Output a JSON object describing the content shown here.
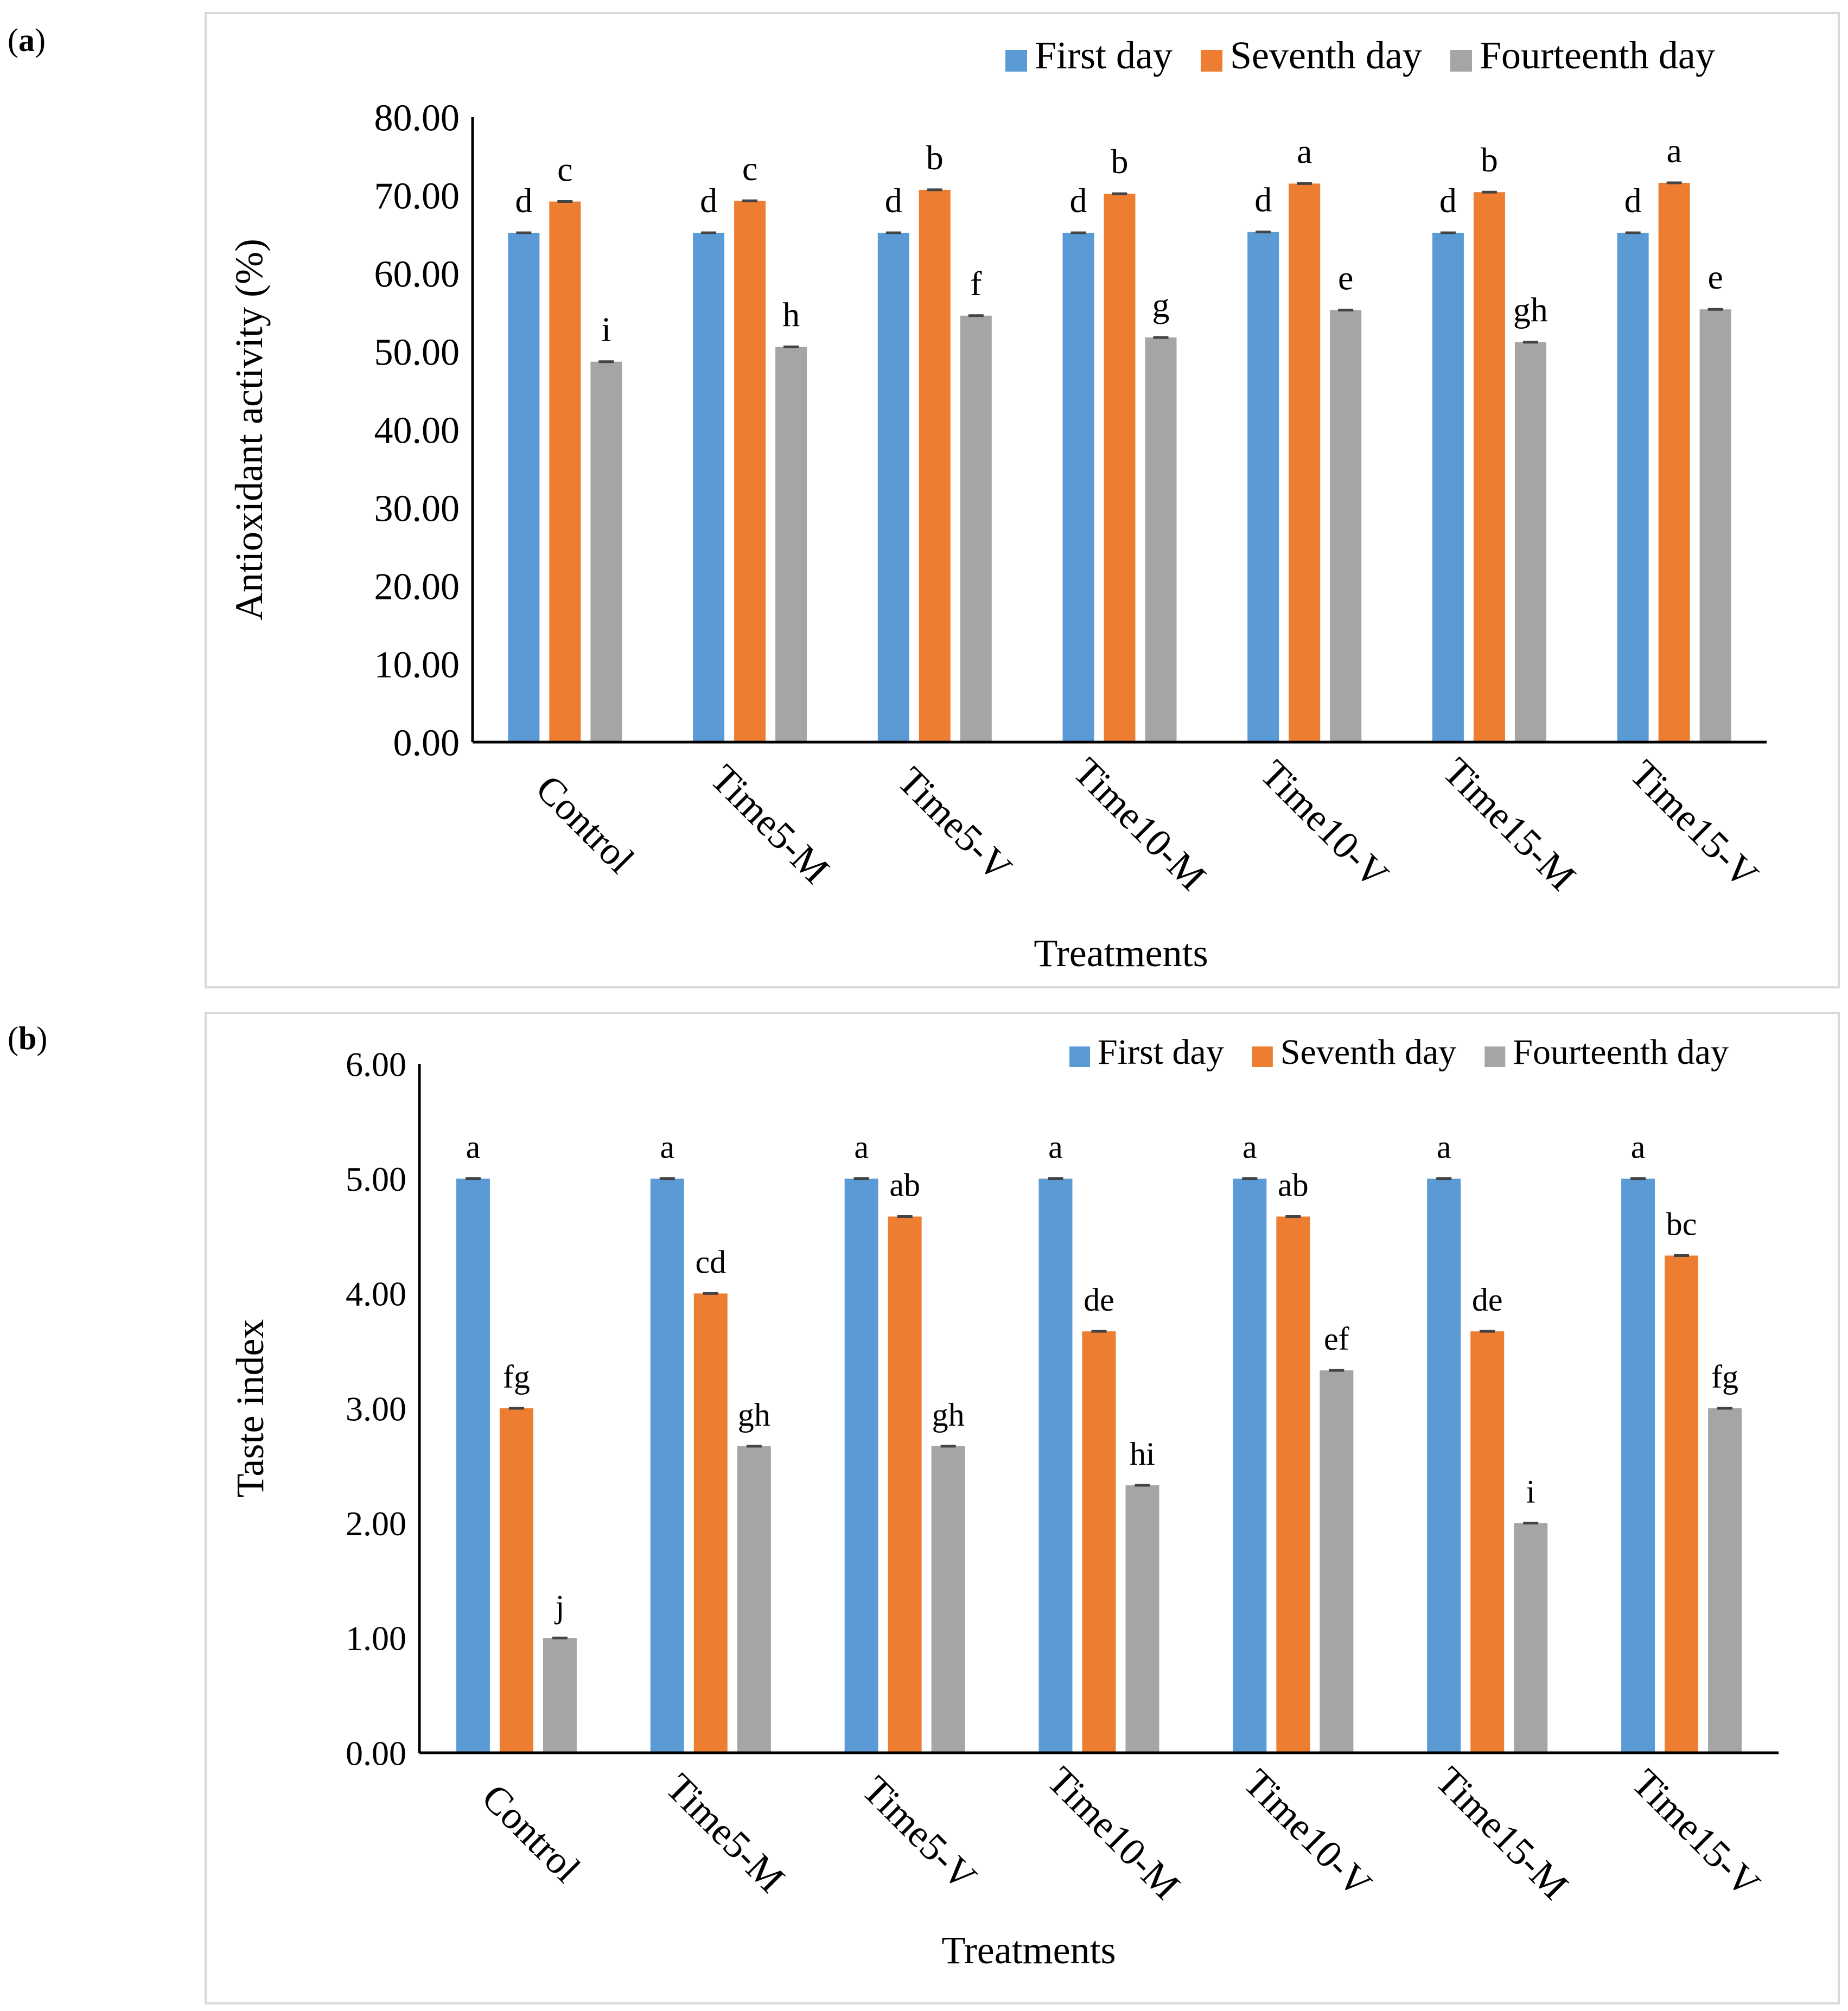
{
  "panels": [
    {
      "label_open": "(",
      "label_letter": "a",
      "label_close": ")"
    },
    {
      "label_open": "(",
      "label_letter": "b",
      "label_close": ")"
    }
  ],
  "chart_data": [
    {
      "type": "bar",
      "categories": [
        "Control",
        "Time5-M",
        "Time5-V",
        "Time10-M",
        "Time10-V",
        "Time15-M",
        "Time15-V"
      ],
      "series": [
        {
          "name": "First day",
          "color": "#5b9bd5",
          "values": [
            65.2,
            65.2,
            65.2,
            65.2,
            65.3,
            65.2,
            65.2
          ],
          "letters": [
            "d",
            "d",
            "d",
            "d",
            "d",
            "d",
            "d"
          ]
        },
        {
          "name": "Seventh day",
          "color": "#ed7d31",
          "values": [
            69.2,
            69.3,
            70.7,
            70.2,
            71.5,
            70.4,
            71.6
          ],
          "letters": [
            "c",
            "c",
            "b",
            "b",
            "a",
            "b",
            "a"
          ]
        },
        {
          "name": "Fourteenth day",
          "color": "#a5a5a5",
          "values": [
            48.7,
            50.6,
            54.6,
            51.8,
            55.3,
            51.2,
            55.4
          ],
          "letters": [
            "i",
            "h",
            "f",
            "g",
            "e",
            "gh",
            "e"
          ]
        }
      ],
      "xlabel": "Treatments",
      "ylabel": "Antioxidant activity (%)",
      "ylim": [
        0,
        80
      ],
      "yticks": [
        "0.00",
        "10.00",
        "20.00",
        "30.00",
        "40.00",
        "50.00",
        "60.00",
        "70.00",
        "80.00"
      ],
      "legend": "top-right",
      "grid": false
    },
    {
      "type": "bar",
      "categories": [
        "Control",
        "Time5-M",
        "Time5-V",
        "Time10-M",
        "Time10-V",
        "Time15-M",
        "Time15-V"
      ],
      "series": [
        {
          "name": "First day",
          "color": "#5b9bd5",
          "values": [
            5.0,
            5.0,
            5.0,
            5.0,
            5.0,
            5.0,
            5.0
          ],
          "letters": [
            "a",
            "a",
            "a",
            "a",
            "a",
            "a",
            "a"
          ]
        },
        {
          "name": "Seventh day",
          "color": "#ed7d31",
          "values": [
            3.0,
            4.0,
            4.67,
            3.67,
            4.67,
            3.67,
            4.33
          ],
          "letters": [
            "fg",
            "cd",
            "ab",
            "de",
            "ab",
            "de",
            "bc"
          ]
        },
        {
          "name": "Fourteenth day",
          "color": "#a5a5a5",
          "values": [
            1.0,
            2.67,
            2.67,
            2.33,
            3.33,
            2.0,
            3.0
          ],
          "letters": [
            "j",
            "gh",
            "gh",
            "hi",
            "ef",
            "i",
            "fg"
          ]
        }
      ],
      "xlabel": "Treatments",
      "ylabel": "Taste index",
      "ylim": [
        0,
        6
      ],
      "yticks": [
        "0.00",
        "1.00",
        "2.00",
        "3.00",
        "4.00",
        "5.00",
        "6.00"
      ],
      "legend": "top-right",
      "grid": false
    }
  ]
}
